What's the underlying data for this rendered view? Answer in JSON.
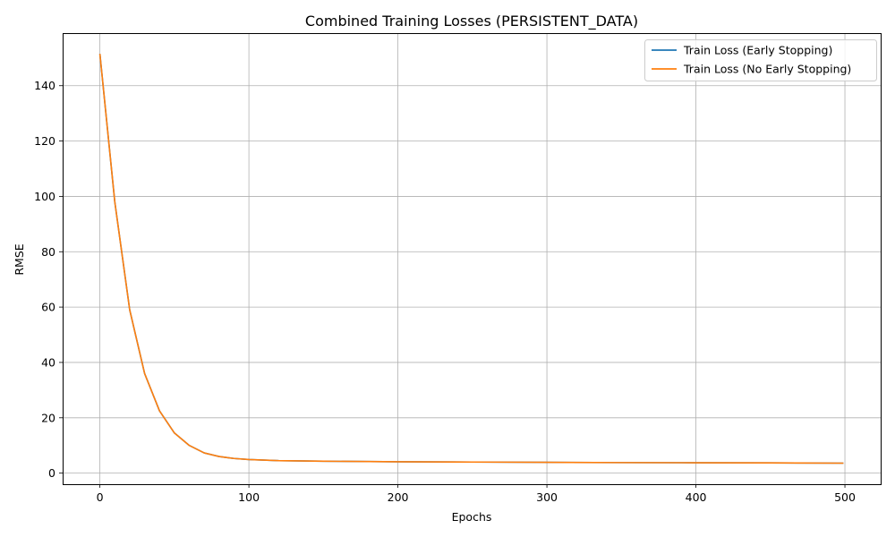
{
  "chart_data": {
    "type": "line",
    "title": "Combined Training Losses (PERSISTENT_DATA)",
    "xlabel": "Epochs",
    "ylabel": "RMSE",
    "xlim": [
      -25,
      524
    ],
    "ylim": [
      -4,
      159
    ],
    "xticks": [
      0,
      100,
      200,
      300,
      400,
      500
    ],
    "yticks": [
      0,
      20,
      40,
      60,
      80,
      100,
      120,
      140
    ],
    "grid": true,
    "legend_position": "top-right",
    "series": [
      {
        "name": "Train Loss (Early Stopping)",
        "color": "#1f77b4",
        "x": [
          0,
          10,
          20,
          30,
          40,
          50,
          60,
          70,
          80,
          90,
          100,
          120,
          150,
          200,
          250,
          300,
          350,
          400,
          450,
          499
        ],
        "y": [
          151.5,
          98,
          59,
          36,
          22.5,
          14.5,
          10,
          7.3,
          6,
          5.3,
          4.9,
          4.5,
          4.3,
          4.1,
          4.0,
          3.9,
          3.8,
          3.75,
          3.7,
          3.6
        ]
      },
      {
        "name": "Train Loss (No Early Stopping)",
        "color": "#ff7f0e",
        "x": [
          0,
          10,
          20,
          30,
          40,
          50,
          60,
          70,
          80,
          90,
          100,
          120,
          150,
          200,
          250,
          300,
          350,
          400,
          450,
          499
        ],
        "y": [
          151.5,
          98,
          59,
          36,
          22.5,
          14.5,
          10,
          7.3,
          6,
          5.3,
          4.9,
          4.5,
          4.3,
          4.1,
          4.0,
          3.9,
          3.8,
          3.75,
          3.7,
          3.6
        ]
      }
    ]
  }
}
